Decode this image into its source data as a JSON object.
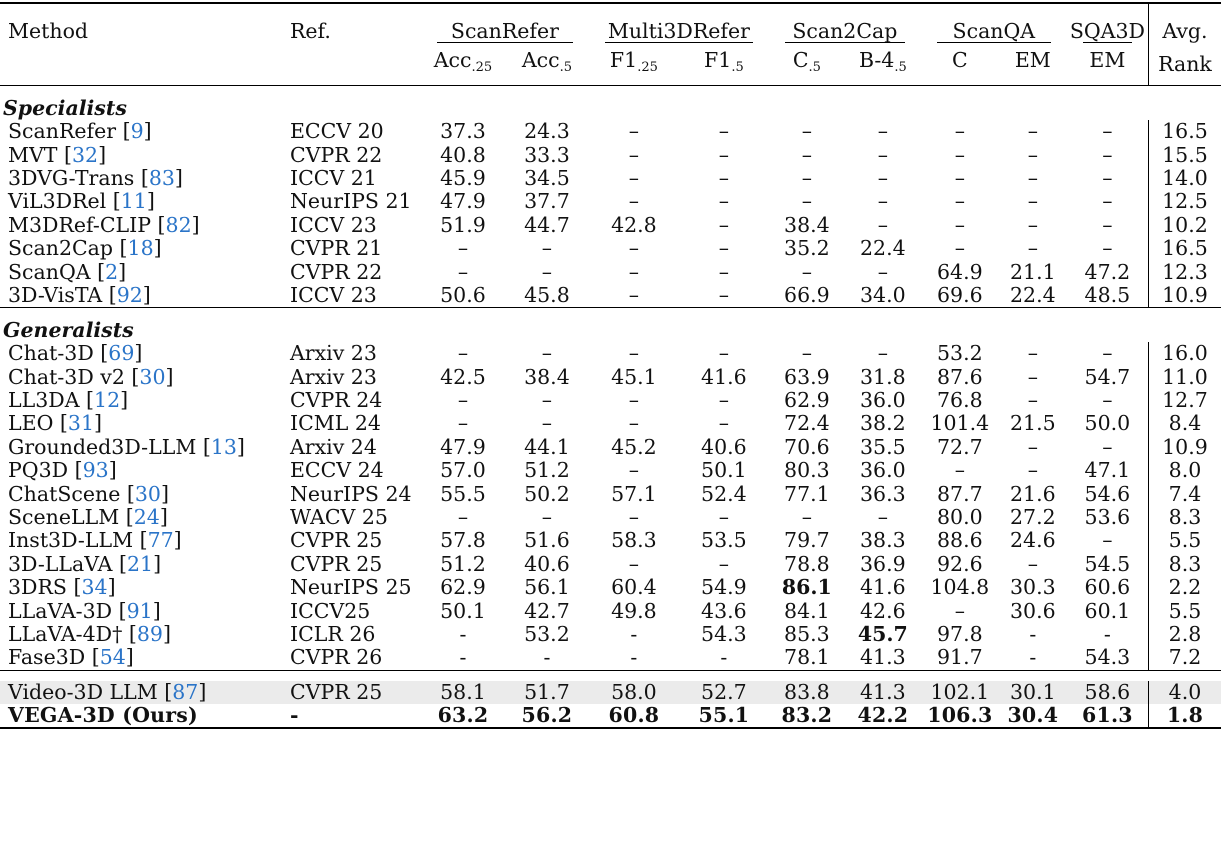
{
  "header": {
    "method": "Method",
    "ref": "Ref.",
    "groups": [
      "ScanRefer",
      "Multi3DRefer",
      "Scan2Cap",
      "ScanQA",
      "SQA3D"
    ],
    "avg": "Avg.",
    "rank": "Rank",
    "metrics": [
      {
        "base": "Acc",
        "sub": ".25"
      },
      {
        "base": "Acc",
        "sub": ".5"
      },
      {
        "base": "F1",
        "sub": ".25"
      },
      {
        "base": "F1",
        "sub": ".5"
      },
      {
        "base": "C",
        "sub": ".5"
      },
      {
        "base": "B-4",
        "sub": ".5"
      },
      {
        "base": "C",
        "sub": ""
      },
      {
        "base": "EM",
        "sub": ""
      },
      {
        "base": "EM",
        "sub": ""
      }
    ]
  },
  "sections": [
    {
      "title": "Specialists",
      "rows": [
        {
          "method": "ScanRefer",
          "cite": "9",
          "ref": "ECCV 20",
          "vals": [
            "37.3",
            "24.3",
            "–",
            "–",
            "–",
            "–",
            "–",
            "–",
            "–"
          ],
          "rank": "16.5"
        },
        {
          "method": "MVT",
          "cite": "32",
          "ref": "CVPR 22",
          "vals": [
            "40.8",
            "33.3",
            "–",
            "–",
            "–",
            "–",
            "–",
            "–",
            "–"
          ],
          "rank": "15.5"
        },
        {
          "method": "3DVG-Trans",
          "cite": "83",
          "ref": "ICCV 21",
          "vals": [
            "45.9",
            "34.5",
            "–",
            "–",
            "–",
            "–",
            "–",
            "–",
            "–"
          ],
          "rank": "14.0"
        },
        {
          "method": "ViL3DRel",
          "cite": "11",
          "ref": "NeurIPS 21",
          "vals": [
            "47.9",
            "37.7",
            "–",
            "–",
            "–",
            "–",
            "–",
            "–",
            "–"
          ],
          "rank": "12.5"
        },
        {
          "method": "M3DRef-CLIP",
          "cite": "82",
          "ref": "ICCV 23",
          "vals": [
            "51.9",
            "44.7",
            "42.8",
            "–",
            "38.4",
            "–",
            "–",
            "–",
            "–"
          ],
          "rank": "10.2"
        },
        {
          "method": "Scan2Cap",
          "cite": "18",
          "ref": "CVPR 21",
          "vals": [
            "–",
            "–",
            "–",
            "–",
            "35.2",
            "22.4",
            "–",
            "–",
            "–"
          ],
          "rank": "16.5"
        },
        {
          "method": "ScanQA",
          "cite": "2",
          "ref": "CVPR 22",
          "vals": [
            "–",
            "–",
            "–",
            "–",
            "–",
            "–",
            "64.9",
            "21.1",
            "47.2"
          ],
          "rank": "12.3"
        },
        {
          "method": "3D-VisTA",
          "cite": "92",
          "ref": "ICCV 23",
          "vals": [
            "50.6",
            "45.8",
            "–",
            "–",
            "66.9",
            "34.0",
            "69.6",
            "22.4",
            "48.5"
          ],
          "rank": "10.9"
        }
      ]
    },
    {
      "title": "Generalists",
      "rows": [
        {
          "method": "Chat-3D",
          "cite": "69",
          "ref": "Arxiv 23",
          "vals": [
            "–",
            "–",
            "–",
            "–",
            "–",
            "–",
            "53.2",
            "–",
            "–"
          ],
          "rank": "16.0"
        },
        {
          "method": "Chat-3D v2",
          "cite": "30",
          "ref": "Arxiv 23",
          "vals": [
            "42.5",
            "38.4",
            "45.1",
            "41.6",
            "63.9",
            "31.8",
            "87.6",
            "–",
            "54.7"
          ],
          "rank": "11.0"
        },
        {
          "method": "LL3DA",
          "cite": "12",
          "ref": "CVPR 24",
          "vals": [
            "–",
            "–",
            "–",
            "–",
            "62.9",
            "36.0",
            "76.8",
            "–",
            "–"
          ],
          "rank": "12.7"
        },
        {
          "method": "LEO",
          "cite": "31",
          "ref": "ICML 24",
          "vals": [
            "–",
            "–",
            "–",
            "–",
            "72.4",
            "38.2",
            "101.4",
            "21.5",
            "50.0"
          ],
          "rank": "8.4"
        },
        {
          "method": "Grounded3D-LLM",
          "cite": "13",
          "ref": "Arxiv 24",
          "vals": [
            "47.9",
            "44.1",
            "45.2",
            "40.6",
            "70.6",
            "35.5",
            "72.7",
            "–",
            "–"
          ],
          "rank": "10.9"
        },
        {
          "method": "PQ3D",
          "cite": "93",
          "ref": "ECCV 24",
          "vals": [
            "57.0",
            "51.2",
            "–",
            "50.1",
            "80.3",
            "36.0",
            "–",
            "–",
            "47.1"
          ],
          "rank": "8.0"
        },
        {
          "method": "ChatScene",
          "cite": "30",
          "ref": "NeurIPS 24",
          "vals": [
            "55.5",
            "50.2",
            "57.1",
            "52.4",
            "77.1",
            "36.3",
            "87.7",
            "21.6",
            "54.6"
          ],
          "rank": "7.4"
        },
        {
          "method": "SceneLLM",
          "cite": "24",
          "ref": "WACV 25",
          "vals": [
            "–",
            "–",
            "–",
            "–",
            "–",
            "–",
            "80.0",
            "27.2",
            "53.6"
          ],
          "rank": "8.3"
        },
        {
          "method": "Inst3D-LLM",
          "cite": "77",
          "ref": "CVPR 25",
          "vals": [
            "57.8",
            "51.6",
            "58.3",
            "53.5",
            "79.7",
            "38.3",
            "88.6",
            "24.6",
            "–"
          ],
          "rank": "5.5"
        },
        {
          "method": "3D-LLaVA",
          "cite": "21",
          "ref": "CVPR 25",
          "vals": [
            "51.2",
            "40.6",
            "–",
            "–",
            "78.8",
            "36.9",
            "92.6",
            "–",
            "54.5"
          ],
          "rank": "8.3"
        },
        {
          "method": "3DRS",
          "cite": "34",
          "ref": "NeurIPS 25",
          "vals": [
            "62.9",
            "56.1",
            "60.4",
            "54.9",
            "86.1",
            "41.6",
            "104.8",
            "30.3",
            "60.6"
          ],
          "rank": "2.2"
        },
        {
          "method": "LLaVA-3D",
          "cite": "91",
          "ref": "ICCV25",
          "vals": [
            "50.1",
            "42.7",
            "49.8",
            "43.6",
            "84.1",
            "42.6",
            "–",
            "30.6",
            "60.1"
          ],
          "rank": "5.5"
        },
        {
          "method": "LLaVA-4D†",
          "cite": "89",
          "ref": "ICLR 26",
          "vals": [
            "-",
            "53.2",
            "-",
            "54.3",
            "85.3",
            "45.7",
            "97.8",
            "-",
            "-"
          ],
          "rank": "2.8"
        },
        {
          "method": "Fase3D",
          "cite": "54",
          "ref": "CVPR 26",
          "vals": [
            "-",
            "-",
            "-",
            "-",
            "78.1",
            "41.3",
            "91.7",
            "-",
            "54.3"
          ],
          "rank": "7.2"
        }
      ]
    }
  ],
  "baseline": {
    "method": "Video-3D LLM",
    "cite": "87",
    "ref": "CVPR 25",
    "vals": [
      "58.1",
      "51.7",
      "58.0",
      "52.7",
      "83.8",
      "41.3",
      "102.1",
      "30.1",
      "58.6"
    ],
    "rank": "4.0"
  },
  "ours": {
    "method": "VEGA-3D (Ours)",
    "ref": "-",
    "vals": [
      "63.2",
      "56.2",
      "60.8",
      "55.1",
      "83.2",
      "42.2",
      "106.3",
      "30.4",
      "61.3"
    ],
    "rank": "1.8"
  },
  "colors": {
    "citation": "#2a74c8",
    "highlight_row": "#ebebeb",
    "text": "#111111"
  }
}
